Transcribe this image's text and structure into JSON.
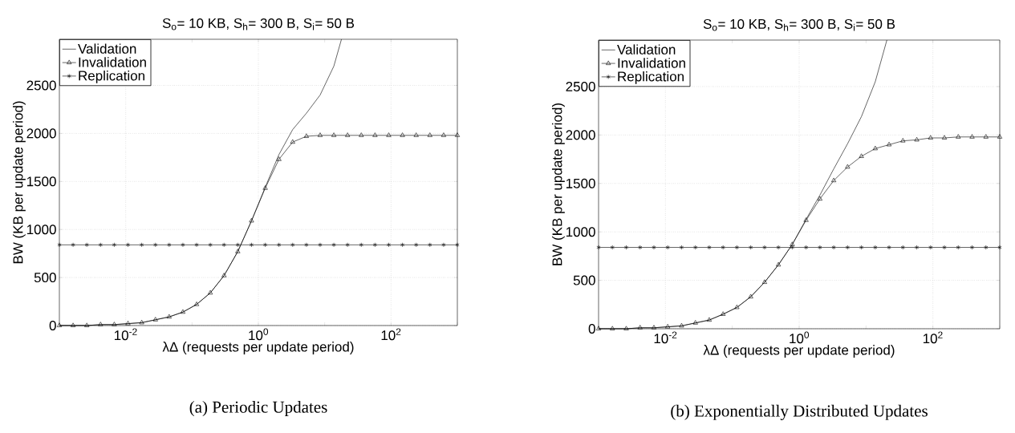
{
  "chart_data": [
    {
      "type": "line",
      "title": "S$_{o}$= 10 KB,  S$_{h}$= 300 B, S$_{i}$= 50 B",
      "xlabel": "λΔ (requests per update period)",
      "ylabel": "BW (KB per update period)",
      "annotations": [
        "(a) Periodic Updates"
      ],
      "log": "x",
      "grid": true,
      "legend": "top left",
      "xlim": [
        0.001,
        1000
      ],
      "ylim": [
        0,
        2980
      ],
      "xticks": [
        {
          "value": 0.001,
          "label": null
        },
        {
          "value": 0.01,
          "label": "10$^{-2}$"
        },
        {
          "value": 0.1,
          "label": null
        },
        {
          "value": 1,
          "label": "10$^{0}$"
        },
        {
          "value": 10,
          "label": null
        },
        {
          "value": 100,
          "label": "10$^{2}$"
        },
        {
          "value": 1000,
          "label": null
        }
      ],
      "yticks": [
        0,
        500,
        1000,
        1500,
        2000,
        2500
      ],
      "x": [
        0.001,
        0.00161,
        0.002593,
        0.004175,
        0.006723,
        0.01082,
        0.01743,
        0.02807,
        0.0452,
        0.07279,
        0.1172,
        0.1887,
        0.3039,
        0.4894,
        0.788,
        1.269,
        2.043,
        3.29,
        5.298,
        8.532,
        13.74,
        22.12,
        35.62,
        57.37,
        92.38,
        148.7,
        239.5,
        385.7,
        621.0,
        1000
      ],
      "series": [
        {
          "name": "Validation",
          "color": "#000000",
          "x": [
            0.001,
            0.00161,
            0.002593,
            0.004175,
            0.006723,
            0.01082,
            0.01743,
            0.02807,
            0.0452,
            0.07279,
            0.1172,
            0.1887,
            0.3039,
            0.4894,
            0.788,
            1.269,
            2.043,
            3.29,
            5.298,
            8.532,
            13.74,
            17.9
          ],
          "values": [
            0,
            0,
            0,
            10,
            10,
            20,
            30,
            60,
            90,
            140,
            220,
            340,
            520,
            770,
            1090,
            1440,
            1780,
            2040,
            2210,
            2400,
            2700,
            2980
          ]
        },
        {
          "name": "Invalidation",
          "color": "#000000",
          "marker": "triangle",
          "values": [
            0,
            0,
            0,
            10,
            10,
            20,
            30,
            60,
            90,
            140,
            220,
            340,
            520,
            770,
            1090,
            1430,
            1730,
            1910,
            1970,
            1980,
            1980,
            1980,
            1980,
            1980,
            1980,
            1980,
            1980,
            1980,
            1980,
            1980
          ]
        },
        {
          "name": "Replication",
          "color": "#000000",
          "marker": "cross",
          "values": [
            840,
            840,
            840,
            840,
            840,
            840,
            840,
            840,
            840,
            840,
            840,
            840,
            840,
            840,
            840,
            840,
            840,
            840,
            840,
            840,
            840,
            840,
            840,
            840,
            840,
            840,
            840,
            840,
            840,
            840
          ]
        }
      ]
    },
    {
      "type": "line",
      "title": "S$_{o}$= 10 KB,  S$_{h}$= 300 B, S$_{i}$= 50 B",
      "xlabel": "λΔ (requests per update period)",
      "ylabel": "BW (KB per update period)",
      "annotations": [
        "(b) Exponentially Distributed Updates"
      ],
      "log": "x",
      "grid": true,
      "legend": "top left",
      "xlim": [
        0.001,
        1000
      ],
      "ylim": [
        0,
        2980
      ],
      "xticks": [
        {
          "value": 0.001,
          "label": null
        },
        {
          "value": 0.01,
          "label": "10$^{-2}$"
        },
        {
          "value": 0.1,
          "label": null
        },
        {
          "value": 1,
          "label": "10$^{0}$"
        },
        {
          "value": 10,
          "label": null
        },
        {
          "value": 100,
          "label": "10$^{2}$"
        },
        {
          "value": 1000,
          "label": null
        }
      ],
      "yticks": [
        0,
        500,
        1000,
        1500,
        2000,
        2500
      ],
      "x": [
        0.001,
        0.00161,
        0.002593,
        0.004175,
        0.006723,
        0.01082,
        0.01743,
        0.02807,
        0.0452,
        0.07279,
        0.1172,
        0.1887,
        0.3039,
        0.4894,
        0.788,
        1.269,
        2.043,
        3.29,
        5.298,
        8.532,
        13.74,
        22.12,
        35.62,
        57.37,
        92.38,
        148.7,
        239.5,
        385.7,
        621.0,
        1000
      ],
      "series": [
        {
          "name": "Validation",
          "color": "#000000",
          "x": [
            0.001,
            0.00161,
            0.002593,
            0.004175,
            0.006723,
            0.01082,
            0.01743,
            0.02807,
            0.0452,
            0.07279,
            0.1172,
            0.1887,
            0.3039,
            0.4894,
            0.788,
            1.269,
            2.043,
            3.29,
            5.298,
            8.532,
            13.74,
            20.5
          ],
          "values": [
            0,
            0,
            0,
            10,
            10,
            20,
            30,
            60,
            90,
            150,
            220,
            330,
            480,
            660,
            870,
            1130,
            1380,
            1650,
            1910,
            2190,
            2550,
            2980
          ]
        },
        {
          "name": "Invalidation",
          "color": "#000000",
          "marker": "triangle",
          "values": [
            0,
            0,
            0,
            10,
            10,
            20,
            30,
            60,
            90,
            150,
            220,
            330,
            480,
            660,
            870,
            1120,
            1340,
            1530,
            1670,
            1780,
            1860,
            1900,
            1940,
            1950,
            1970,
            1970,
            1980,
            1980,
            1980,
            1980
          ]
        },
        {
          "name": "Replication",
          "color": "#000000",
          "marker": "cross",
          "values": [
            840,
            840,
            840,
            840,
            840,
            840,
            840,
            840,
            840,
            840,
            840,
            840,
            840,
            840,
            840,
            840,
            840,
            840,
            840,
            840,
            840,
            840,
            840,
            840,
            840,
            840,
            840,
            840,
            840,
            840
          ]
        }
      ]
    }
  ]
}
